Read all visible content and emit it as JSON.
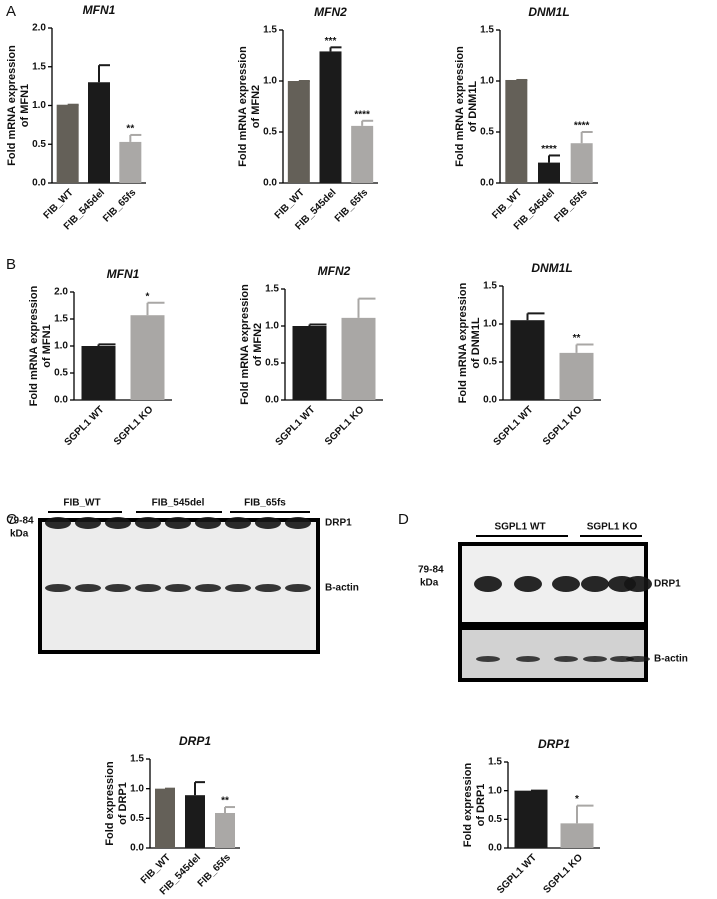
{
  "panel_labels": [
    "A",
    "B",
    "C",
    "D"
  ],
  "blot_c": {
    "groups": [
      "FIB_WT",
      "FIB_545del",
      "FIB_65fs"
    ],
    "size": "79-84",
    "unit": "kDa",
    "bands": [
      "DRP1",
      "B-actin"
    ]
  },
  "blot_d": {
    "groups": [
      "SGPL1 WT",
      "SGPL1 KO"
    ],
    "size": "79-84",
    "unit": "kDa",
    "bands": [
      "DRP1",
      "B-actin"
    ]
  },
  "chart_data": [
    {
      "type": "bar",
      "title": "MFN1",
      "ylabel": [
        "Fold mRNA expression",
        "of MFN1"
      ],
      "categories": [
        "FIB_WT",
        "FIB_545del",
        "FIB_65fs"
      ],
      "values": [
        1.01,
        1.3,
        0.53
      ],
      "errors": [
        0,
        0.22,
        0.09
      ],
      "annotations": [
        null,
        null,
        "**"
      ],
      "colors": [
        "#646058",
        "#1b1b1b",
        "#aaa8a6"
      ],
      "ylim": [
        0,
        2
      ],
      "yticks": [
        {
          "value": 0,
          "label": "0.0"
        },
        0.5,
        {
          "value": 1,
          "label": "1.0"
        },
        1.5,
        {
          "value": 2,
          "label": "2.0"
        }
      ]
    },
    {
      "type": "bar",
      "title": "MFN2",
      "ylabel": [
        "Fold mRNA expression",
        "of MFN2"
      ],
      "categories": [
        "FIB_WT",
        "FIB_545del",
        "FIB_65fs"
      ],
      "values": [
        1.0,
        1.29,
        0.56
      ],
      "errors": [
        0,
        0.04,
        0.05
      ],
      "annotations": [
        null,
        "***",
        "****"
      ],
      "colors": [
        "#646058",
        "#1b1b1b",
        "#aaa8a6"
      ],
      "ylim": [
        0,
        1.5
      ],
      "yticks": [
        {
          "value": 0,
          "label": "0.0"
        },
        0.5,
        {
          "value": 1,
          "label": "1.0"
        },
        1.5
      ]
    },
    {
      "type": "bar",
      "title": "DNM1L",
      "ylabel": [
        "Fold mRNA expression",
        "of DNM1L"
      ],
      "categories": [
        "FIB_WT",
        "FIB_545del",
        "FIB_65fs"
      ],
      "values": [
        1.01,
        0.2,
        0.39
      ],
      "errors": [
        0,
        0.07,
        0.11
      ],
      "annotations": [
        null,
        "****",
        "****"
      ],
      "colors": [
        "#646058",
        "#1b1b1b",
        "#aaa8a6"
      ],
      "ylim": [
        0,
        1.5
      ],
      "yticks": [
        {
          "value": 0,
          "label": "0.0"
        },
        0.5,
        {
          "value": 1,
          "label": "1.0"
        },
        1.5
      ]
    },
    {
      "type": "bar",
      "title": "MFN1",
      "ylabel": [
        "Fold mRNA expression",
        "of MFN1"
      ],
      "categories": [
        "SGPL1 WT",
        "SGPL1 KO"
      ],
      "values": [
        1.0,
        1.57
      ],
      "errors": [
        0.03,
        0.23
      ],
      "annotations": [
        null,
        "*"
      ],
      "colors": [
        "#1b1b1b",
        "#a9a7a5"
      ],
      "ylim": [
        0,
        2
      ],
      "yticks": [
        {
          "value": 0,
          "label": "0.0"
        },
        0.5,
        {
          "value": 1,
          "label": "1.0"
        },
        1.5,
        {
          "value": 2,
          "label": "2.0"
        }
      ]
    },
    {
      "type": "bar",
      "title": "MFN2",
      "ylabel": [
        "Fold mRNA expression",
        "of MFN2"
      ],
      "categories": [
        "SGPL1 WT",
        "SGPL1 KO"
      ],
      "values": [
        1.0,
        1.11
      ],
      "errors": [
        0.02,
        0.26
      ],
      "colors": [
        "#1b1b1b",
        "#a9a7a5"
      ],
      "ylim": [
        0,
        1.5
      ],
      "yticks": [
        {
          "value": 0,
          "label": "0.0"
        },
        0.5,
        {
          "value": 1,
          "label": "1.0"
        },
        1.5
      ]
    },
    {
      "type": "bar",
      "title": "DNM1L",
      "ylabel": [
        "Fold mRNA expression",
        "of DNM1L"
      ],
      "categories": [
        "SGPL1 WT",
        "SGPL1 KO"
      ],
      "values": [
        1.05,
        0.62
      ],
      "errors": [
        0.09,
        0.11
      ],
      "annotations": [
        null,
        "**"
      ],
      "colors": [
        "#1b1b1b",
        "#a9a7a5"
      ],
      "ylim": [
        0,
        1.5
      ],
      "yticks": [
        {
          "value": 0,
          "label": "0.0"
        },
        0.5,
        {
          "value": 1,
          "label": "1.0"
        },
        1.5
      ]
    },
    {
      "type": "bar",
      "title": "DRP1",
      "ylabel": [
        "Fold expression",
        "of DRP1"
      ],
      "categories": [
        "FIB_WT",
        "FIB_545del",
        "FIB_65fs"
      ],
      "values": [
        1.0,
        0.89,
        0.59
      ],
      "errors": [
        0,
        0.22,
        0.1
      ],
      "annotations": [
        null,
        null,
        "**"
      ],
      "colors": [
        "#646058",
        "#1b1b1b",
        "#aaa8a6"
      ],
      "ylim": [
        0,
        1.5
      ],
      "yticks": [
        {
          "value": 0,
          "label": "0.0"
        },
        0.5,
        {
          "value": 1,
          "label": "1.0"
        },
        1.5
      ]
    },
    {
      "type": "bar",
      "title": "DRP1",
      "ylabel": [
        "Fold expression",
        "of DRP1"
      ],
      "categories": [
        "SGPL1 WT",
        "SGPL1 KO"
      ],
      "values": [
        1.0,
        0.43
      ],
      "errors": [
        0,
        0.31
      ],
      "annotations": [
        null,
        "*"
      ],
      "colors": [
        "#1b1b1b",
        "#a9a7a5"
      ],
      "ylim": [
        0,
        1.5
      ],
      "yticks": [
        {
          "value": 0,
          "label": "0.0"
        },
        0.5,
        {
          "value": 1,
          "label": "1.0"
        },
        1.5
      ]
    }
  ]
}
